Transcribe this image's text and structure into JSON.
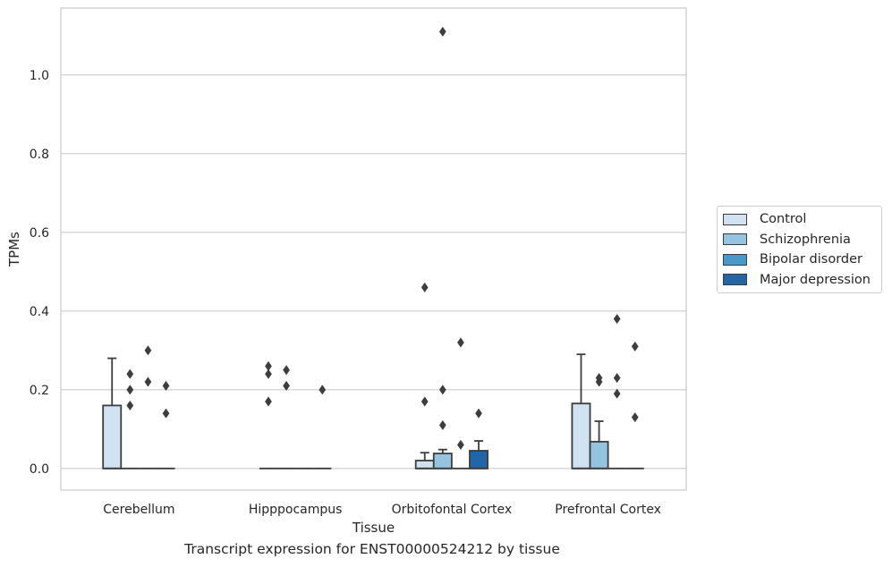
{
  "chart_data": {
    "type": "box",
    "title": "",
    "xlabel": "Tissue",
    "ylabel": "TPMs",
    "caption": "Transcript expression for ENST00000524212 by tissue",
    "ylim": [
      -0.055,
      1.17
    ],
    "yticks": [
      0.0,
      0.2,
      0.4,
      0.6,
      0.8,
      1.0
    ],
    "ytick_labels": [
      "0.0",
      "0.2",
      "0.4",
      "0.6",
      "0.8",
      "1.0"
    ],
    "grid": "horizontal",
    "legend_position": "right",
    "categories": [
      "Cerebellum",
      "Hipppocampus",
      "Orbitofontal Cortex",
      "Prefrontal Cortex"
    ],
    "series": [
      {
        "name": "Control",
        "color": "#d0e1f2",
        "boxes": [
          {
            "q1": 0,
            "median": 0,
            "q3": 0.16,
            "whisker_low": 0,
            "whisker_high": 0.28,
            "outliers": []
          },
          {
            "q1": 0,
            "median": 0,
            "q3": 0,
            "whisker_low": 0,
            "whisker_high": 0,
            "outliers": [
              0.17,
              0.24,
              0.26
            ]
          },
          {
            "q1": 0,
            "median": 0,
            "q3": 0.02,
            "whisker_low": 0,
            "whisker_high": 0.04,
            "outliers": [
              0.17,
              0.46
            ]
          },
          {
            "q1": 0,
            "median": 0,
            "q3": 0.165,
            "whisker_low": 0,
            "whisker_high": 0.29,
            "outliers": []
          }
        ]
      },
      {
        "name": "Schizophrenia",
        "color": "#94c4df",
        "boxes": [
          {
            "q1": 0,
            "median": 0,
            "q3": 0,
            "whisker_low": 0,
            "whisker_high": 0,
            "outliers": [
              0.16,
              0.2,
              0.24
            ]
          },
          {
            "q1": 0,
            "median": 0,
            "q3": 0,
            "whisker_low": 0,
            "whisker_high": 0,
            "outliers": [
              0.21,
              0.25
            ]
          },
          {
            "q1": 0,
            "median": 0,
            "q3": 0.038,
            "whisker_low": 0,
            "whisker_high": 0.048,
            "outliers": [
              0.11,
              0.2,
              1.11
            ]
          },
          {
            "q1": 0,
            "median": 0,
            "q3": 0.068,
            "whisker_low": 0,
            "whisker_high": 0.12,
            "outliers": [
              0.22,
              0.23
            ]
          }
        ]
      },
      {
        "name": "Bipolar disorder",
        "color": "#4a98c9",
        "boxes": [
          {
            "q1": 0,
            "median": 0,
            "q3": 0,
            "whisker_low": 0,
            "whisker_high": 0,
            "outliers": [
              0.22,
              0.3
            ]
          },
          {
            "q1": 0,
            "median": 0,
            "q3": 0,
            "whisker_low": 0,
            "whisker_high": 0,
            "outliers": []
          },
          {
            "q1": 0,
            "median": 0,
            "q3": 0,
            "whisker_low": 0,
            "whisker_high": 0,
            "outliers": [
              0.06,
              0.32
            ]
          },
          {
            "q1": 0,
            "median": 0,
            "q3": 0,
            "whisker_low": 0,
            "whisker_high": 0,
            "outliers": [
              0.19,
              0.23,
              0.38
            ]
          }
        ]
      },
      {
        "name": "Major depression",
        "color": "#2366a8",
        "boxes": [
          {
            "q1": 0,
            "median": 0,
            "q3": 0,
            "whisker_low": 0,
            "whisker_high": 0,
            "outliers": [
              0.14,
              0.21
            ]
          },
          {
            "q1": 0,
            "median": 0,
            "q3": 0,
            "whisker_low": 0,
            "whisker_high": 0,
            "outliers": [
              0.2
            ]
          },
          {
            "q1": 0,
            "median": 0,
            "q3": 0.045,
            "whisker_low": 0,
            "whisker_high": 0.07,
            "outliers": [
              0.14
            ]
          },
          {
            "q1": 0,
            "median": 0,
            "q3": 0,
            "whisker_low": 0,
            "whisker_high": 0,
            "outliers": [
              0.13,
              0.31
            ]
          }
        ]
      }
    ]
  }
}
